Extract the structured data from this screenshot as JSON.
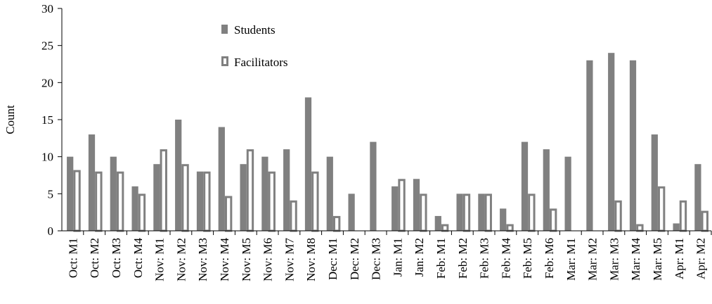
{
  "chart_data": {
    "type": "bar",
    "y_label": "Count",
    "categories": [
      "Oct: M1",
      "Oct: M2",
      "Oct: M3",
      "Oct: M4",
      "Nov: M1",
      "Nov: M2",
      "Nov: M3",
      "Nov: M4",
      "Nov: M5",
      "Nov: M6",
      "Nov: M7",
      "Nov: M8",
      "Dec: M1",
      "Dec: M2",
      "Dec: M3",
      "Jan: M1",
      "Jan: M2",
      "Feb: M1",
      "Feb: M2",
      "Feb: M3",
      "Feb: M4",
      "Feb: M5",
      "Feb: M6",
      "Mar: M1",
      "Mar: M2",
      "Mar: M3",
      "Mar: M4",
      "Mar: M5",
      "Apr: M1",
      "Apr: M2"
    ],
    "series": [
      {
        "name": "Students",
        "color": "#808080",
        "values": [
          10,
          13,
          10,
          6,
          9,
          15,
          8,
          14,
          9,
          10,
          11,
          18,
          10,
          5,
          12,
          6,
          7,
          2,
          5,
          5,
          3,
          12,
          11,
          10,
          23,
          24,
          23,
          13,
          1,
          9
        ]
      },
      {
        "name": "Facilitators",
        "color": "#808080",
        "values": [
          8.2,
          8,
          8,
          5,
          11,
          9,
          8,
          4.7,
          11,
          8,
          4.1,
          8,
          2,
          0,
          0,
          7,
          5,
          0.9,
          5,
          5,
          0.9,
          5,
          3,
          0,
          0,
          4.1,
          0.9,
          6,
          4.1,
          2.7
        ]
      }
    ],
    "ylim": [
      0,
      30
    ],
    "yticks": [
      0,
      5,
      10,
      15,
      20,
      25,
      30
    ],
    "grid": false
  }
}
